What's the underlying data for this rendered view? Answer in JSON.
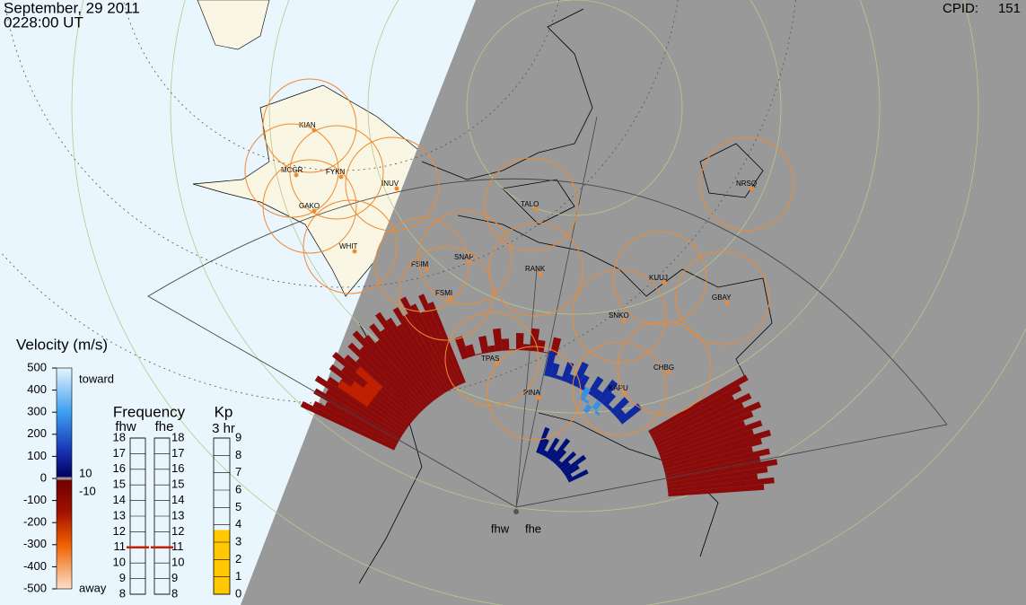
{
  "header": {
    "date": "September, 29 2011",
    "time": "0228:00 UT",
    "cpid_label": "CPID:",
    "cpid": "151"
  },
  "stations": [
    "KIAN",
    "MCGR",
    "FYKN",
    "GAKO",
    "INUV",
    "WHIT",
    "FSIM",
    "SNAP",
    "FSMI",
    "RANK",
    "TALO",
    "NRSQ",
    "KUUJ",
    "GBAY",
    "SNKO",
    "KAPU",
    "CHBG",
    "PINA",
    "TPAS"
  ],
  "radars": [
    "fhw",
    "fhe"
  ],
  "velocity_legend": {
    "title": "Velocity (m/s)",
    "ticks": [
      500,
      400,
      300,
      200,
      100,
      0,
      -100,
      -200,
      -300,
      -400,
      -500
    ],
    "toward": "toward",
    "away": "away",
    "ground_scatter": [
      "10",
      "-10"
    ]
  },
  "frequency": {
    "title": "Frequency",
    "radars": [
      "fhw",
      "fhe"
    ],
    "ticks": [
      18,
      17,
      16,
      15,
      14,
      13,
      12,
      11,
      10,
      9,
      8
    ],
    "values": [
      11,
      11
    ]
  },
  "kp": {
    "title": "Kp",
    "subtitle": "3 hr",
    "ticks": [
      9,
      8,
      7,
      6,
      5,
      4,
      3,
      2,
      1,
      0
    ],
    "value": 3.7
  }
}
